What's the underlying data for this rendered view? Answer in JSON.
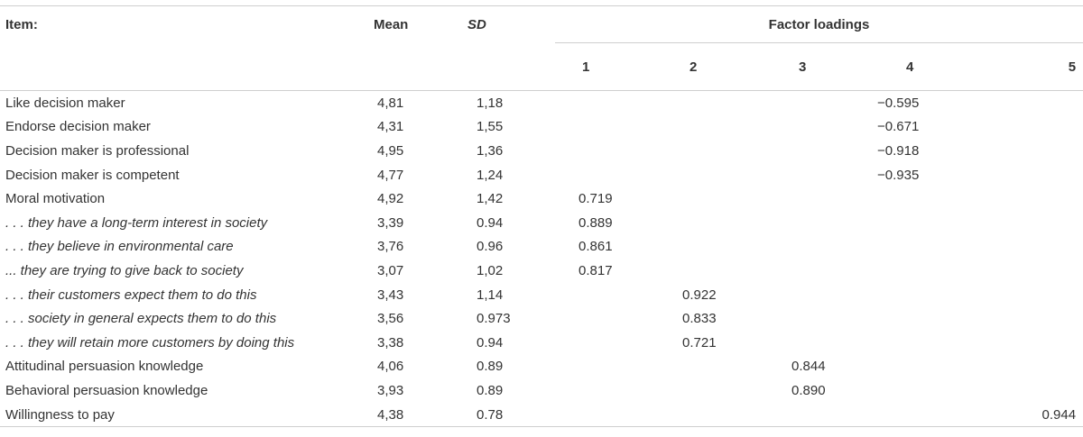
{
  "headers": {
    "item": "Item:",
    "mean": "Mean",
    "sd": "SD",
    "factor_loadings": "Factor loadings",
    "factors": [
      "1",
      "2",
      "3",
      "4",
      "5"
    ]
  },
  "rows": [
    {
      "item": "Like decision maker",
      "italic": false,
      "mean": "4,81",
      "sd": "1,18",
      "f": [
        "",
        "",
        "",
        "−0.595",
        ""
      ]
    },
    {
      "item": "Endorse decision maker",
      "italic": false,
      "mean": "4,31",
      "sd": "1,55",
      "f": [
        "",
        "",
        "",
        "−0.671",
        ""
      ]
    },
    {
      "item": "Decision maker is professional",
      "italic": false,
      "mean": "4,95",
      "sd": "1,36",
      "f": [
        "",
        "",
        "",
        "−0.918",
        ""
      ]
    },
    {
      "item": "Decision maker is competent",
      "italic": false,
      "mean": "4,77",
      "sd": "1,24",
      "f": [
        "",
        "",
        "",
        "−0.935",
        ""
      ]
    },
    {
      "item": "Moral motivation",
      "italic": false,
      "mean": "4,92",
      "sd": "1,42",
      "f": [
        "0.719",
        "",
        "",
        "",
        ""
      ]
    },
    {
      "item": ". . . they have a long-term interest in society",
      "italic": true,
      "mean": "3,39",
      "sd": "0.94",
      "f": [
        "0.889",
        "",
        "",
        "",
        ""
      ]
    },
    {
      "item": ". . . they believe in environmental care",
      "italic": true,
      "mean": "3,76",
      "sd": "0.96",
      "f": [
        "0.861",
        "",
        "",
        "",
        ""
      ]
    },
    {
      "item": "... they are trying to give back to society",
      "italic": true,
      "mean": "3,07",
      "sd": "1,02",
      "f": [
        "0.817",
        "",
        "",
        "",
        ""
      ]
    },
    {
      "item": ". . . their customers expect them to do this",
      "italic": true,
      "mean": "3,43",
      "sd": "1,14",
      "f": [
        "",
        "0.922",
        "",
        "",
        ""
      ]
    },
    {
      "item": ". . . society in general expects them to do this",
      "italic": true,
      "mean": "3,56",
      "sd": "0.973",
      "f": [
        "",
        "0.833",
        "",
        "",
        ""
      ]
    },
    {
      "item": ". . . they will retain more customers by doing this",
      "italic": true,
      "mean": "3,38",
      "sd": "0.94",
      "f": [
        "",
        "0.721",
        "",
        "",
        ""
      ]
    },
    {
      "item": "Attitudinal persuasion knowledge",
      "italic": false,
      "mean": "4,06",
      "sd": "0.89",
      "f": [
        "",
        "",
        "0.844",
        "",
        ""
      ]
    },
    {
      "item": "Behavioral persuasion knowledge",
      "italic": false,
      "mean": "3,93",
      "sd": "0.89",
      "f": [
        "",
        "",
        "0.890",
        "",
        ""
      ]
    },
    {
      "item": "Willingness to pay",
      "italic": false,
      "mean": "4,38",
      "sd": "0.78",
      "f": [
        "",
        "",
        "",
        "",
        "0.944"
      ]
    }
  ]
}
